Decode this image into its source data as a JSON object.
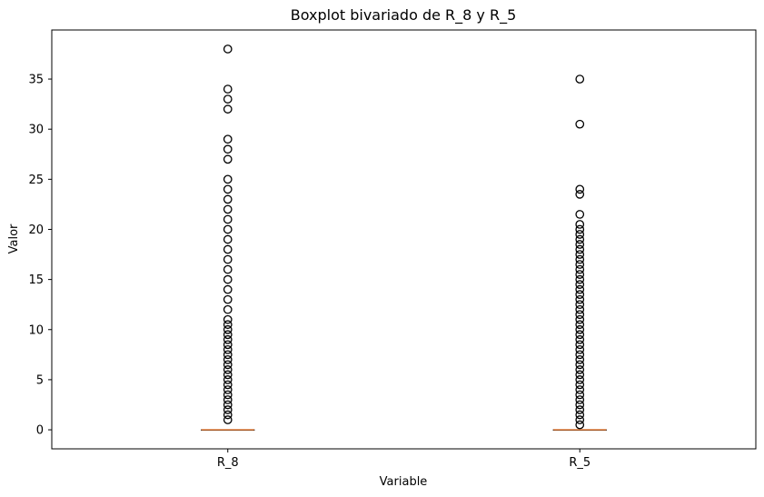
{
  "chart_data": {
    "type": "boxplot",
    "title": "Boxplot bivariado de R_8 y R_5",
    "xlabel": "Variable",
    "ylabel": "Valor",
    "ylim": [
      -1.9,
      39.9
    ],
    "yticks": [
      0,
      5,
      10,
      15,
      20,
      25,
      30,
      35
    ],
    "categories": [
      "R_8",
      "R_5"
    ],
    "grid": false,
    "colors": {
      "median": "#e07b39",
      "box": "#000000",
      "flier": "#000000"
    },
    "series": [
      {
        "category": "R_8",
        "box": {
          "whislo": 0,
          "q1": 0,
          "median": 0,
          "q3": 0,
          "whishi": 0
        },
        "fliers": [
          1,
          1.5,
          2,
          2.5,
          3,
          3.5,
          4,
          4.5,
          5,
          5.5,
          6,
          6.5,
          7,
          7.5,
          8,
          8.5,
          9,
          9.5,
          10,
          10.5,
          11,
          12,
          13,
          14,
          15,
          16,
          17,
          18,
          19,
          20,
          21,
          22,
          23,
          24,
          25,
          27,
          28,
          29,
          32,
          33,
          34,
          38
        ]
      },
      {
        "category": "R_5",
        "box": {
          "whislo": 0,
          "q1": 0,
          "median": 0,
          "q3": 0,
          "whishi": 0
        },
        "fliers": [
          0.5,
          1,
          1.5,
          2,
          2.5,
          3,
          3.5,
          4,
          4.5,
          5,
          5.5,
          6,
          6.5,
          7,
          7.5,
          8,
          8.5,
          9,
          9.5,
          10,
          10.5,
          11,
          11.5,
          12,
          12.5,
          13,
          13.5,
          14,
          14.5,
          15,
          15.5,
          16,
          16.5,
          17,
          17.5,
          18,
          18.5,
          19,
          19.5,
          20,
          20.5,
          21.5,
          23.5,
          24,
          30.5,
          35
        ]
      }
    ]
  }
}
